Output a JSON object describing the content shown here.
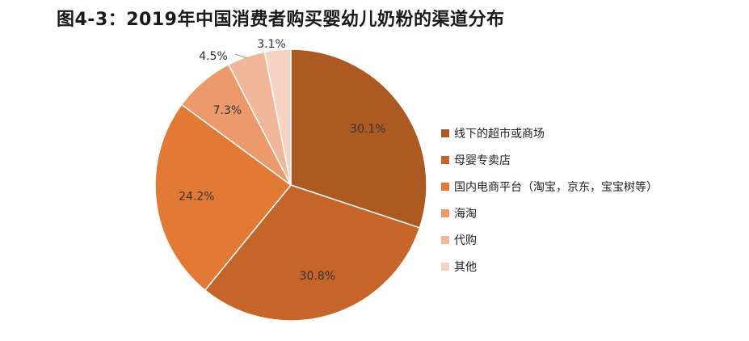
{
  "title": "图4-3：2019年中国消费者购买婴幼儿奶粉的渠道分布",
  "chart_data": {
    "type": "pie",
    "title": "图4-3：2019年中国消费者购买婴幼儿奶粉的渠道分布",
    "unit": "%",
    "legend_position": "right",
    "start_angle_deg": 0,
    "direction": "clockwise",
    "slices": [
      {
        "name": "线下的超市或商场",
        "value": 30.1,
        "label": "30.1%",
        "color": "#ad5a22"
      },
      {
        "name": "母婴专卖店",
        "value": 30.8,
        "label": "30.8%",
        "color": "#c6652a"
      },
      {
        "name": "国内电商平台（淘宝，京东，宝宝树等）",
        "value": 24.2,
        "label": "24.2%",
        "color": "#e27a35"
      },
      {
        "name": "海淘",
        "value": 7.3,
        "label": "7.3%",
        "color": "#ec9a6b"
      },
      {
        "name": "代购",
        "value": 4.5,
        "label": "4.5%",
        "color": "#f0b79a"
      },
      {
        "name": "其他",
        "value": 3.1,
        "label": "3.1%",
        "color": "#f6d3c5"
      }
    ]
  }
}
